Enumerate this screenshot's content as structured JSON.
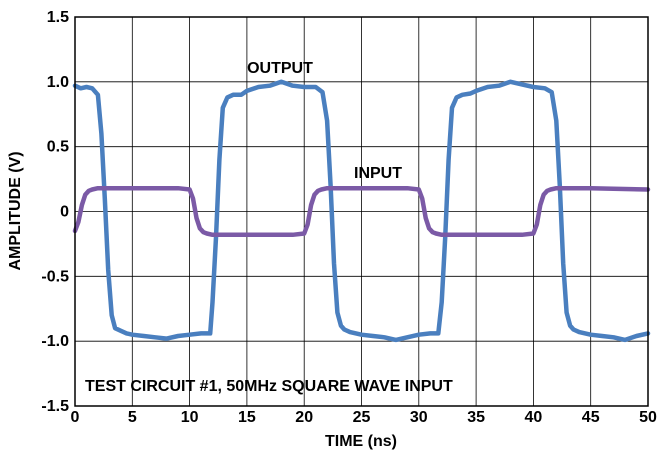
{
  "chart_data": {
    "type": "line",
    "title": "",
    "xlabel": "TIME (ns)",
    "ylabel": "AMPLITUDE (V)",
    "xlim": [
      0,
      50
    ],
    "ylim": [
      -1.5,
      1.5
    ],
    "grid": true,
    "x_ticks": [
      "0",
      "5",
      "10",
      "15",
      "20",
      "25",
      "30",
      "35",
      "40",
      "45",
      "50"
    ],
    "y_ticks": [
      "1.5",
      "1.0",
      "0.5",
      "0",
      "-0.5",
      "-1.0",
      "-1.5"
    ],
    "annotation": "TEST CIRCUIT #1, 50MHz SQUARE WAVE INPUT",
    "colors": {
      "output": "#4a7fbf",
      "input": "#7b5aa6",
      "grid": "#000000"
    },
    "series": [
      {
        "name": "OUTPUT",
        "color": "#4a7fbf",
        "x": [
          0,
          0.5,
          1.0,
          1.5,
          2.0,
          2.3,
          2.6,
          2.9,
          3.2,
          3.5,
          4.0,
          4.5,
          5.0,
          6.0,
          7.0,
          8.0,
          9.0,
          10.0,
          11.0,
          11.8,
          12.0,
          12.3,
          12.6,
          12.9,
          13.3,
          13.8,
          14.5,
          15.0,
          16.0,
          17.0,
          18.0,
          19.0,
          20.0,
          21.0,
          21.6,
          22.0,
          22.3,
          22.6,
          22.9,
          23.2,
          23.5,
          24.0,
          25.0,
          26.0,
          27.0,
          28.0,
          29.0,
          30.0,
          31.0,
          31.7,
          32.0,
          32.3,
          32.6,
          32.9,
          33.3,
          33.8,
          34.5,
          35.0,
          36.0,
          37.0,
          38.0,
          39.0,
          40.0,
          41.0,
          41.6,
          42.0,
          42.3,
          42.6,
          42.9,
          43.2,
          43.5,
          44.0,
          45.0,
          46.0,
          47.0,
          48.0,
          49.0,
          50.0
        ],
        "values": [
          0.97,
          0.95,
          0.96,
          0.95,
          0.9,
          0.6,
          0.1,
          -0.45,
          -0.8,
          -0.9,
          -0.92,
          -0.94,
          -0.95,
          -0.96,
          -0.97,
          -0.98,
          -0.96,
          -0.95,
          -0.94,
          -0.94,
          -0.7,
          -0.2,
          0.4,
          0.8,
          0.88,
          0.9,
          0.9,
          0.93,
          0.96,
          0.97,
          1.0,
          0.97,
          0.96,
          0.96,
          0.92,
          0.7,
          0.2,
          -0.4,
          -0.78,
          -0.88,
          -0.91,
          -0.93,
          -0.95,
          -0.96,
          -0.97,
          -0.99,
          -0.97,
          -0.95,
          -0.94,
          -0.94,
          -0.7,
          -0.2,
          0.4,
          0.8,
          0.88,
          0.9,
          0.91,
          0.93,
          0.96,
          0.97,
          1.0,
          0.98,
          0.96,
          0.95,
          0.92,
          0.7,
          0.2,
          -0.4,
          -0.78,
          -0.88,
          -0.91,
          -0.93,
          -0.95,
          -0.96,
          -0.97,
          -0.99,
          -0.96,
          -0.94
        ]
      },
      {
        "name": "INPUT",
        "color": "#7b5aa6",
        "x": [
          0,
          0.3,
          0.6,
          0.9,
          1.2,
          1.5,
          2.0,
          5.0,
          9.0,
          10.0,
          10.3,
          10.6,
          10.9,
          11.2,
          11.5,
          12.0,
          15.0,
          19.0,
          20.0,
          20.3,
          20.6,
          20.9,
          21.2,
          21.5,
          22.0,
          25.0,
          29.0,
          30.0,
          30.3,
          30.6,
          30.9,
          31.2,
          31.5,
          32.0,
          35.0,
          39.0,
          40.0,
          40.3,
          40.6,
          40.9,
          41.2,
          41.5,
          42.0,
          45.0,
          50.0
        ],
        "values": [
          -0.15,
          -0.08,
          0.05,
          0.13,
          0.16,
          0.17,
          0.18,
          0.18,
          0.18,
          0.17,
          0.1,
          -0.05,
          -0.13,
          -0.16,
          -0.17,
          -0.18,
          -0.18,
          -0.18,
          -0.17,
          -0.1,
          0.05,
          0.13,
          0.16,
          0.17,
          0.18,
          0.18,
          0.18,
          0.17,
          0.1,
          -0.05,
          -0.13,
          -0.16,
          -0.17,
          -0.18,
          -0.18,
          -0.18,
          -0.17,
          -0.1,
          0.05,
          0.13,
          0.16,
          0.17,
          0.18,
          0.18,
          0.17
        ]
      }
    ]
  }
}
